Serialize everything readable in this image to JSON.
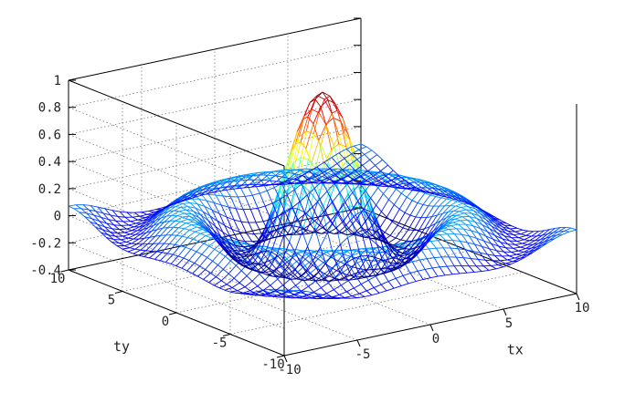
{
  "chart_data": {
    "type": "mesh3d",
    "function": "sin(sqrt(tx^2+ty^2)) / sqrt(tx^2+ty^2)",
    "xlabel": "tx",
    "ylabel": "ty",
    "zlabel": "",
    "xlim": [
      -10,
      10
    ],
    "ylim": [
      -10,
      10
    ],
    "zlim": [
      -0.4,
      1
    ],
    "x_ticks": [
      -10,
      -5,
      0,
      5,
      10
    ],
    "y_ticks": [
      -10,
      -5,
      0,
      5,
      10
    ],
    "z_ticks": [
      -0.4,
      -0.2,
      0,
      0.2,
      0.4,
      0.6,
      0.8,
      1
    ],
    "x_tick_labels": [
      "-10",
      "-5",
      "0",
      "5",
      "10"
    ],
    "y_tick_labels": [
      "-10",
      "-5",
      "0",
      "5",
      "10"
    ],
    "z_tick_labels": [
      "-0.4",
      "-0.2",
      "0",
      "0.2",
      "0.4",
      "0.6",
      "0.8",
      "1"
    ],
    "mesh_resolution": 41,
    "colormap": "jet",
    "grid": true
  }
}
